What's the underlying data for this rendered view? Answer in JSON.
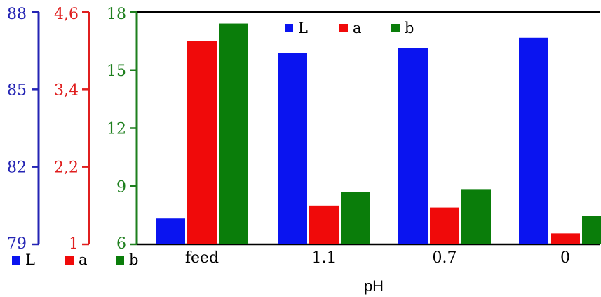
{
  "chart_data": {
    "type": "bar",
    "xlabel": "pH",
    "categories": [
      "feed",
      "1.1",
      "0.7",
      "0"
    ],
    "series": [
      {
        "name": "L",
        "color": "#0a14f0",
        "axis": "L",
        "values": [
          80.0,
          86.4,
          86.6,
          87.0
        ]
      },
      {
        "name": "a",
        "color": "#f00a0a",
        "axis": "a",
        "values": [
          4.15,
          1.6,
          1.57,
          1.17
        ]
      },
      {
        "name": "b",
        "color": "#0a7d0a",
        "axis": "b",
        "values": [
          17.4,
          8.7,
          8.85,
          7.45
        ]
      }
    ],
    "axes": {
      "L": {
        "ylim": [
          79,
          88
        ],
        "ticks": [
          "79",
          "82",
          "85",
          "88"
        ],
        "tick_values": [
          79,
          82,
          85,
          88
        ],
        "color": "#2424b4"
      },
      "a": {
        "ylim": [
          1,
          4.6
        ],
        "ticks": [
          "1",
          "2,2",
          "3,4",
          "4,6"
        ],
        "tick_values": [
          1,
          2.2,
          3.4,
          4.6
        ],
        "color": "#e01f1f"
      },
      "b": {
        "ylim": [
          6,
          18
        ],
        "ticks": [
          "6",
          "9",
          "12",
          "15",
          "18"
        ],
        "tick_values": [
          6,
          9,
          12,
          15,
          18
        ],
        "color": "#1e7f1e"
      }
    },
    "legend_top": {
      "placement": "top-center",
      "labels": [
        "L",
        "a",
        "b"
      ]
    },
    "legend_bottom": {
      "placement": "bottom-left",
      "labels": [
        "L",
        "a",
        "b"
      ]
    },
    "grid": false
  }
}
